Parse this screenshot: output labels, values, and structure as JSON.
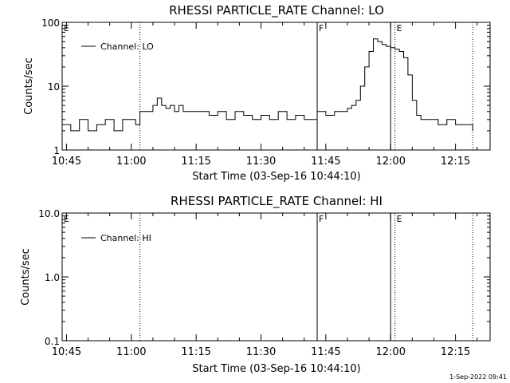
{
  "footer": {
    "date_stamp": "1-Sep-2022 09:41"
  },
  "chart_data": [
    {
      "type": "line",
      "title": "RHESSI PARTICLE_RATE Channel: LO",
      "xlabel": "Start Time (03-Sep-16 10:44:10)",
      "ylabel": "Counts/sec",
      "yscale": "log",
      "ylim": [
        1,
        100
      ],
      "xlim": [
        "10:44",
        "12:23"
      ],
      "grid": false,
      "legend": {
        "position": "top-left",
        "entries": [
          "Channel: LO"
        ]
      },
      "x_ticks": [
        "10:45",
        "11:00",
        "11:15",
        "11:30",
        "11:45",
        "12:00",
        "12:15"
      ],
      "y_ticks": [
        "1",
        "10",
        "100"
      ],
      "vertical_markers": [
        {
          "time": "11:02",
          "style": "dotted",
          "label": ""
        },
        {
          "time": "11:43",
          "style": "solid",
          "label": "F"
        },
        {
          "time": "12:00",
          "style": "solid",
          "label": ""
        },
        {
          "time": "12:01",
          "style": "dotted",
          "label": "E"
        },
        {
          "time": "12:19",
          "style": "dotted",
          "label": ""
        }
      ],
      "edge_labels": [
        "E"
      ],
      "series": [
        {
          "name": "Channel: LO",
          "x": [
            "10:44",
            "10:46",
            "10:48",
            "10:50",
            "10:52",
            "10:54",
            "10:56",
            "10:58",
            "11:00",
            "11:01",
            "11:02",
            "11:04",
            "11:05",
            "11:06",
            "11:07",
            "11:08",
            "11:09",
            "11:10",
            "11:11",
            "11:12",
            "11:14",
            "11:16",
            "11:18",
            "11:20",
            "11:22",
            "11:24",
            "11:26",
            "11:28",
            "11:30",
            "11:32",
            "11:34",
            "11:36",
            "11:38",
            "11:40",
            "11:42",
            "11:43",
            "11:45",
            "11:47",
            "11:48",
            "11:49",
            "11:50",
            "11:51",
            "11:52",
            "11:53",
            "11:54",
            "11:55",
            "11:56",
            "11:57",
            "11:58",
            "11:59",
            "12:00",
            "12:01",
            "12:02",
            "12:03",
            "12:04",
            "12:05",
            "12:06",
            "12:07",
            "12:09",
            "12:11",
            "12:13",
            "12:15",
            "12:17",
            "12:19"
          ],
          "y": [
            2.5,
            2,
            3,
            2,
            2.5,
            3,
            2,
            3,
            3,
            2.5,
            4,
            4,
            5,
            6.5,
            5,
            4.5,
            5,
            4,
            5,
            4,
            4,
            4,
            3.5,
            4,
            3,
            4,
            3.5,
            3,
            3.5,
            3,
            4,
            3,
            3.5,
            3,
            3,
            4,
            3.5,
            4,
            4,
            4,
            4.5,
            5,
            6,
            10,
            20,
            35,
            55,
            50,
            45,
            42,
            40,
            38,
            35,
            28,
            15,
            6,
            3.5,
            3,
            3,
            2.5,
            3,
            2.5,
            2.5,
            2
          ]
        }
      ]
    },
    {
      "type": "line",
      "title": "RHESSI PARTICLE_RATE Channel: HI",
      "xlabel": "Start Time (03-Sep-16 10:44:10)",
      "ylabel": "Counts/sec",
      "yscale": "log",
      "ylim": [
        0.1,
        10
      ],
      "xlim": [
        "10:44",
        "12:23"
      ],
      "grid": false,
      "legend": {
        "position": "top-left",
        "entries": [
          "Channel: HI"
        ]
      },
      "x_ticks": [
        "10:45",
        "11:00",
        "11:15",
        "11:30",
        "11:45",
        "12:00",
        "12:15"
      ],
      "y_ticks": [
        "0.1",
        "1.0",
        "10.0"
      ],
      "vertical_markers": [
        {
          "time": "11:02",
          "style": "dotted",
          "label": ""
        },
        {
          "time": "11:43",
          "style": "solid",
          "label": "F"
        },
        {
          "time": "12:00",
          "style": "solid",
          "label": ""
        },
        {
          "time": "12:01",
          "style": "dotted",
          "label": "E"
        },
        {
          "time": "12:19",
          "style": "dotted",
          "label": ""
        }
      ],
      "edge_labels": [
        "E"
      ],
      "series": [
        {
          "name": "Channel: HI",
          "x": [],
          "y": []
        }
      ]
    }
  ]
}
